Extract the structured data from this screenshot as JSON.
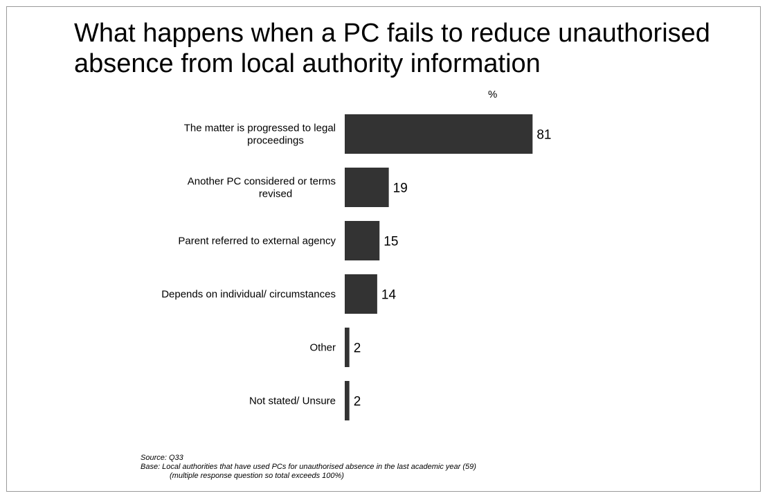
{
  "title": "What happens when a PC fails to reduce unauthorised absence from local authority information",
  "unit_label": "%",
  "chart_data": {
    "type": "bar",
    "orientation": "horizontal",
    "categories": [
      [
        "The matter is progressed to legal",
        "proceedings"
      ],
      [
        "Another PC considered or terms",
        "revised"
      ],
      [
        "Parent referred to external agency"
      ],
      [
        "Depends on individual/ circumstances"
      ],
      [
        "Other"
      ],
      [
        "Not stated/ Unsure"
      ]
    ],
    "values": [
      81,
      19,
      15,
      14,
      2,
      2
    ],
    "bar_color": "#333333",
    "xlim": [
      0,
      100
    ],
    "grid": false,
    "axes_visible": false,
    "data_labels": true
  },
  "footnotes": {
    "source": "Source: Q33",
    "base": "Base: Local authorities that have used PCs for unauthorised absence in the last academic year (59)",
    "note": "(multiple response question so total exceeds 100%)"
  }
}
